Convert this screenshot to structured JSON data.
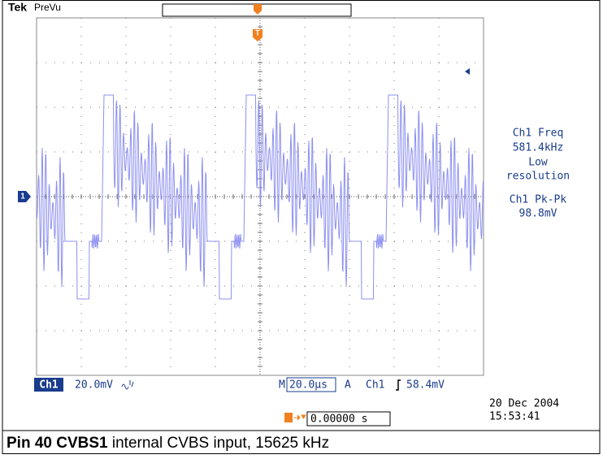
{
  "header": {
    "brand": "Tek",
    "mode": "PreVu"
  },
  "readouts": {
    "freq_label": "Ch1 Freq",
    "freq_value": "581.4kHz",
    "freq_note_1": "Low",
    "freq_note_2": "resolution",
    "pkpk_label": "Ch1 Pk-Pk",
    "pkpk_value": "98.8mV"
  },
  "status": {
    "channel": "Ch1",
    "scale": "20.0mV",
    "timebase_prefix": "M",
    "timebase": "20.0µs",
    "trigger_prefix": "A",
    "trigger_source": "Ch1",
    "trigger_level": "58.4mV",
    "trigger_position": "0.00000 s",
    "date": "20 Dec  2004",
    "time": "15:53:41"
  },
  "caption": {
    "bold": "Pin 40 CVBS1",
    "text": " internal CVBS input, 15625 kHz"
  }
}
